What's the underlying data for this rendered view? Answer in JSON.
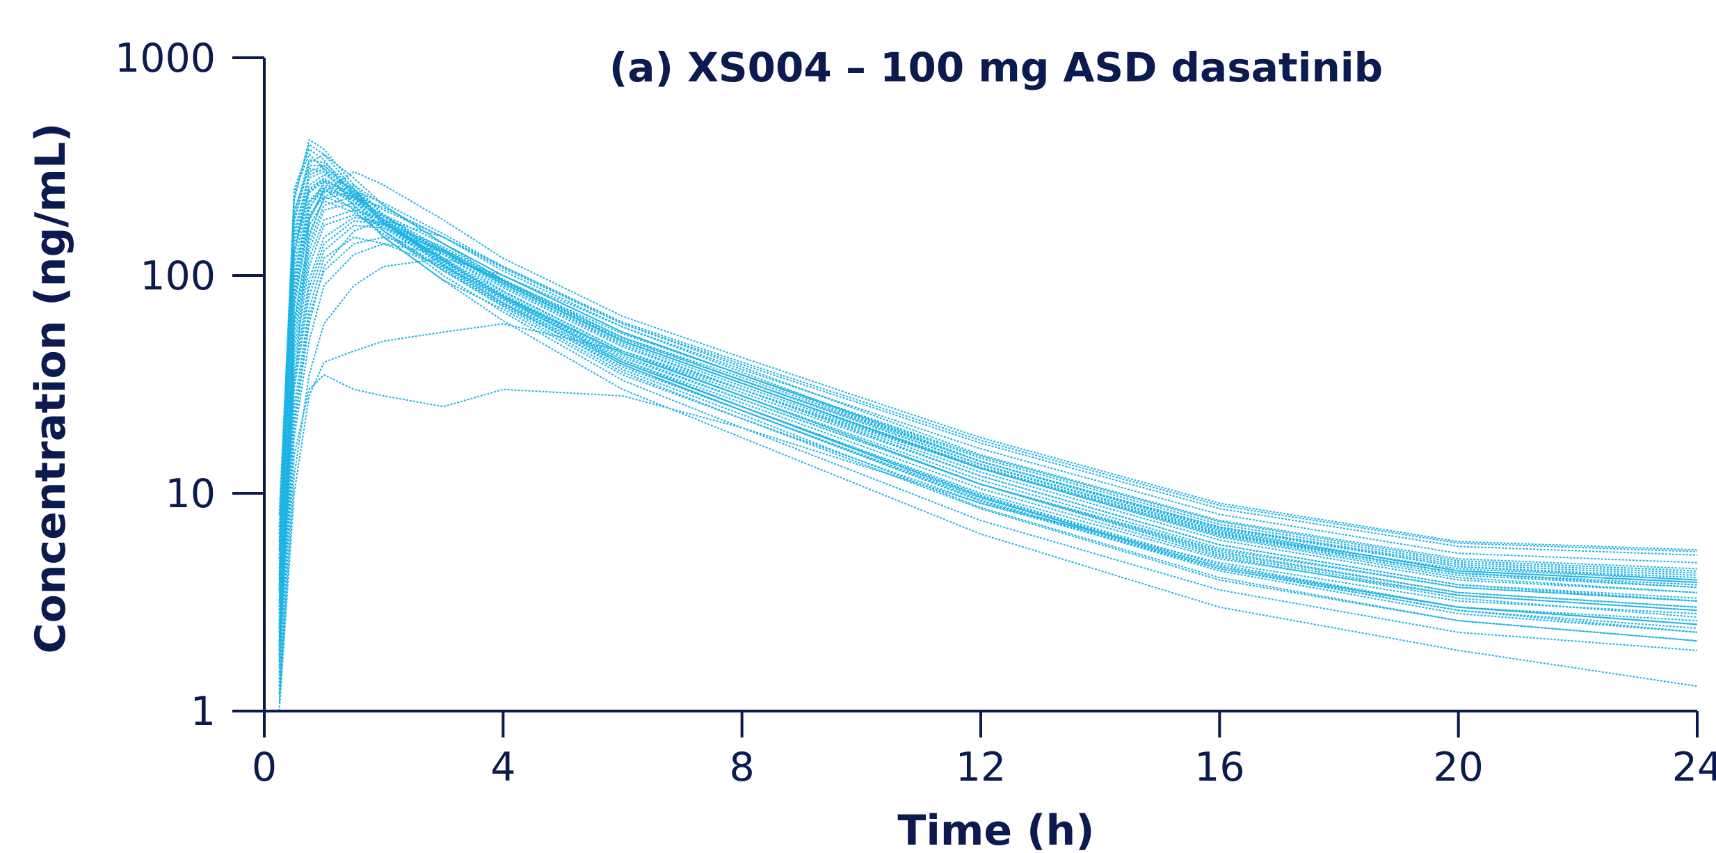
{
  "chart_data": {
    "type": "line",
    "title": "(a) XS004 – 100 mg ASD dasatinib",
    "xlabel": "Time (h)",
    "ylabel": "Concentration (ng/mL)",
    "x_scale": "linear",
    "y_scale": "log",
    "xlim": [
      0,
      24
    ],
    "ylim": [
      1,
      1000
    ],
    "x_ticks": [
      0,
      4,
      8,
      12,
      16,
      20,
      24
    ],
    "x_tick_labels": [
      "0",
      "4",
      "8",
      "12",
      "16",
      "20",
      "24"
    ],
    "y_ticks": [
      1,
      10,
      100,
      1000
    ],
    "y_tick_labels": [
      "1",
      "10",
      "100",
      "1000"
    ],
    "grid": false,
    "legend": "none",
    "line_style": "dotted",
    "series_color": "#1fb3e5",
    "axis_color": "#0b1a4f",
    "x": [
      0.25,
      0.5,
      0.75,
      1,
      1.5,
      2,
      3,
      4,
      6,
      8,
      12,
      16,
      20,
      24
    ],
    "series": [
      {
        "values": [
          1.0,
          30,
          180,
          250,
          200,
          150,
          95,
          70,
          35,
          22,
          9,
          4.5,
          3.0,
          2.5
        ]
      },
      {
        "values": [
          3.0,
          120,
          300,
          320,
          240,
          170,
          110,
          75,
          40,
          25,
          10,
          5.0,
          3.4,
          2.9
        ]
      },
      {
        "values": [
          8.0,
          220,
          420,
          380,
          260,
          190,
          120,
          80,
          42,
          27,
          11,
          5.5,
          3.7,
          3.2
        ]
      },
      {
        "values": [
          2.0,
          60,
          150,
          230,
          260,
          210,
          140,
          95,
          50,
          32,
          13,
          6.5,
          4.3,
          3.8
        ]
      },
      {
        "values": [
          1.5,
          20,
          60,
          110,
          160,
          180,
          150,
          110,
          60,
          38,
          15,
          7.5,
          5.0,
          4.5
        ]
      },
      {
        "values": [
          1.0,
          10,
          28,
          40,
          45,
          50,
          55,
          60,
          45,
          30,
          13,
          6.5,
          4.5,
          4.0
        ]
      },
      {
        "values": [
          1.2,
          15,
          30,
          35,
          30,
          28,
          25,
          30,
          28,
          20,
          9,
          4.8,
          3.2,
          2.8
        ]
      },
      {
        "values": [
          5.0,
          250,
          380,
          340,
          230,
          160,
          100,
          68,
          33,
          20,
          7.5,
          3.6,
          2.3,
          1.9
        ]
      },
      {
        "values": [
          4.0,
          180,
          330,
          360,
          280,
          210,
          140,
          100,
          55,
          35,
          14,
          7.0,
          4.6,
          4.0
        ]
      },
      {
        "values": [
          2.5,
          80,
          200,
          270,
          240,
          200,
          150,
          105,
          58,
          37,
          16,
          8.0,
          5.3,
          4.8
        ]
      },
      {
        "values": [
          1.8,
          45,
          120,
          180,
          200,
          180,
          130,
          90,
          48,
          30,
          12,
          5.8,
          3.8,
          3.2
        ]
      },
      {
        "values": [
          6.0,
          200,
          310,
          300,
          220,
          160,
          105,
          72,
          36,
          22,
          8.5,
          4.0,
          2.6,
          2.1
        ]
      },
      {
        "values": [
          1.3,
          25,
          70,
          120,
          150,
          140,
          110,
          80,
          44,
          28,
          11,
          5.2,
          3.4,
          2.9
        ]
      },
      {
        "values": [
          3.5,
          140,
          260,
          290,
          250,
          190,
          125,
          85,
          45,
          28,
          11,
          5.3,
          3.5,
          3.0
        ]
      },
      {
        "values": [
          2.2,
          70,
          180,
          240,
          300,
          260,
          180,
          120,
          65,
          42,
          18,
          9.0,
          6.0,
          5.5
        ]
      },
      {
        "values": [
          1.1,
          12,
          35,
          60,
          90,
          110,
          120,
          100,
          58,
          36,
          14,
          6.8,
          4.4,
          3.9
        ]
      },
      {
        "values": [
          7.0,
          240,
          360,
          310,
          210,
          150,
          95,
          62,
          30,
          18,
          6.5,
          3.0,
          1.9,
          1.3
        ]
      },
      {
        "values": [
          3.2,
          110,
          240,
          270,
          210,
          165,
          112,
          78,
          41,
          26,
          10.5,
          5.1,
          3.3,
          2.7
        ]
      },
      {
        "values": [
          2.8,
          95,
          215,
          255,
          225,
          180,
          125,
          88,
          47,
          30,
          12.5,
          6.1,
          4.0,
          3.5
        ]
      },
      {
        "values": [
          1.6,
          35,
          95,
          150,
          185,
          175,
          135,
          96,
          52,
          33,
          13.5,
          6.6,
          4.3,
          3.7
        ]
      },
      {
        "values": [
          4.5,
          160,
          290,
          310,
          240,
          175,
          115,
          79,
          40,
          25,
          9.8,
          4.7,
          3.0,
          2.5
        ]
      },
      {
        "values": [
          2.0,
          55,
          140,
          210,
          230,
          205,
          150,
          108,
          60,
          39,
          17,
          8.5,
          5.7,
          5.2
        ]
      },
      {
        "values": [
          1.4,
          30,
          80,
          130,
          170,
          165,
          130,
          92,
          50,
          32,
          13,
          6.3,
          4.1,
          3.5
        ]
      },
      {
        "values": [
          5.5,
          190,
          340,
          330,
          250,
          180,
          118,
          80,
          41,
          25,
          9.6,
          4.5,
          2.9,
          2.3
        ]
      },
      {
        "values": [
          2.6,
          85,
          190,
          230,
          205,
          160,
          108,
          74,
          39,
          24,
          9.5,
          4.6,
          3.0,
          2.6
        ]
      },
      {
        "values": [
          3.8,
          130,
          250,
          280,
          230,
          175,
          118,
          82,
          44,
          28,
          11.5,
          5.6,
          3.7,
          3.2
        ]
      },
      {
        "values": [
          1.9,
          50,
          130,
          200,
          215,
          190,
          140,
          100,
          55,
          35,
          14.5,
          7.2,
          4.8,
          4.3
        ]
      },
      {
        "values": [
          1.2,
          18,
          50,
          90,
          125,
          140,
          125,
          95,
          54,
          35,
          14.8,
          7.4,
          4.9,
          4.4
        ]
      },
      {
        "values": [
          6.5,
          230,
          400,
          360,
          250,
          175,
          112,
          75,
          37,
          23,
          8.6,
          4.1,
          2.6,
          2.1
        ]
      },
      {
        "values": [
          2.3,
          75,
          170,
          220,
          195,
          155,
          106,
          73,
          38,
          24,
          9.3,
          4.5,
          2.9,
          2.4
        ]
      },
      {
        "values": [
          3.0,
          100,
          220,
          260,
          235,
          185,
          128,
          90,
          49,
          31,
          13,
          6.4,
          4.2,
          3.7
        ]
      },
      {
        "values": [
          1.7,
          40,
          110,
          170,
          190,
          170,
          128,
          92,
          50,
          32,
          13.2,
          6.5,
          4.3,
          3.8
        ]
      },
      {
        "values": [
          4.2,
          150,
          280,
          300,
          235,
          172,
          113,
          77,
          39,
          24,
          9.2,
          4.4,
          2.8,
          2.3
        ]
      },
      {
        "values": [
          2.4,
          78,
          185,
          245,
          230,
          188,
          132,
          93,
          51,
          33,
          14,
          6.9,
          4.6,
          4.1
        ]
      },
      {
        "values": [
          1.3,
          22,
          65,
          105,
          140,
          150,
          128,
          94,
          52,
          34,
          14,
          7.0,
          4.7,
          4.2
        ]
      },
      {
        "values": [
          5.0,
          175,
          320,
          320,
          245,
          178,
          116,
          79,
          40,
          25,
          9.7,
          4.6,
          3.0,
          2.5
        ]
      },
      {
        "values": [
          2.9,
          92,
          205,
          250,
          220,
          172,
          117,
          81,
          43,
          27,
          11,
          5.4,
          3.5,
          3.0
        ]
      },
      {
        "values": [
          3.6,
          125,
          245,
          275,
          228,
          176,
          120,
          84,
          45,
          29,
          12,
          5.8,
          3.8,
          3.3
        ]
      },
      {
        "values": [
          1.5,
          32,
          88,
          140,
          178,
          172,
          132,
          95,
          52,
          33,
          13.6,
          6.7,
          4.4,
          3.9
        ]
      },
      {
        "values": [
          2.1,
          62,
          155,
          225,
          245,
          215,
          155,
          110,
          61,
          40,
          17.5,
          8.8,
          5.9,
          5.4
        ]
      }
    ]
  }
}
